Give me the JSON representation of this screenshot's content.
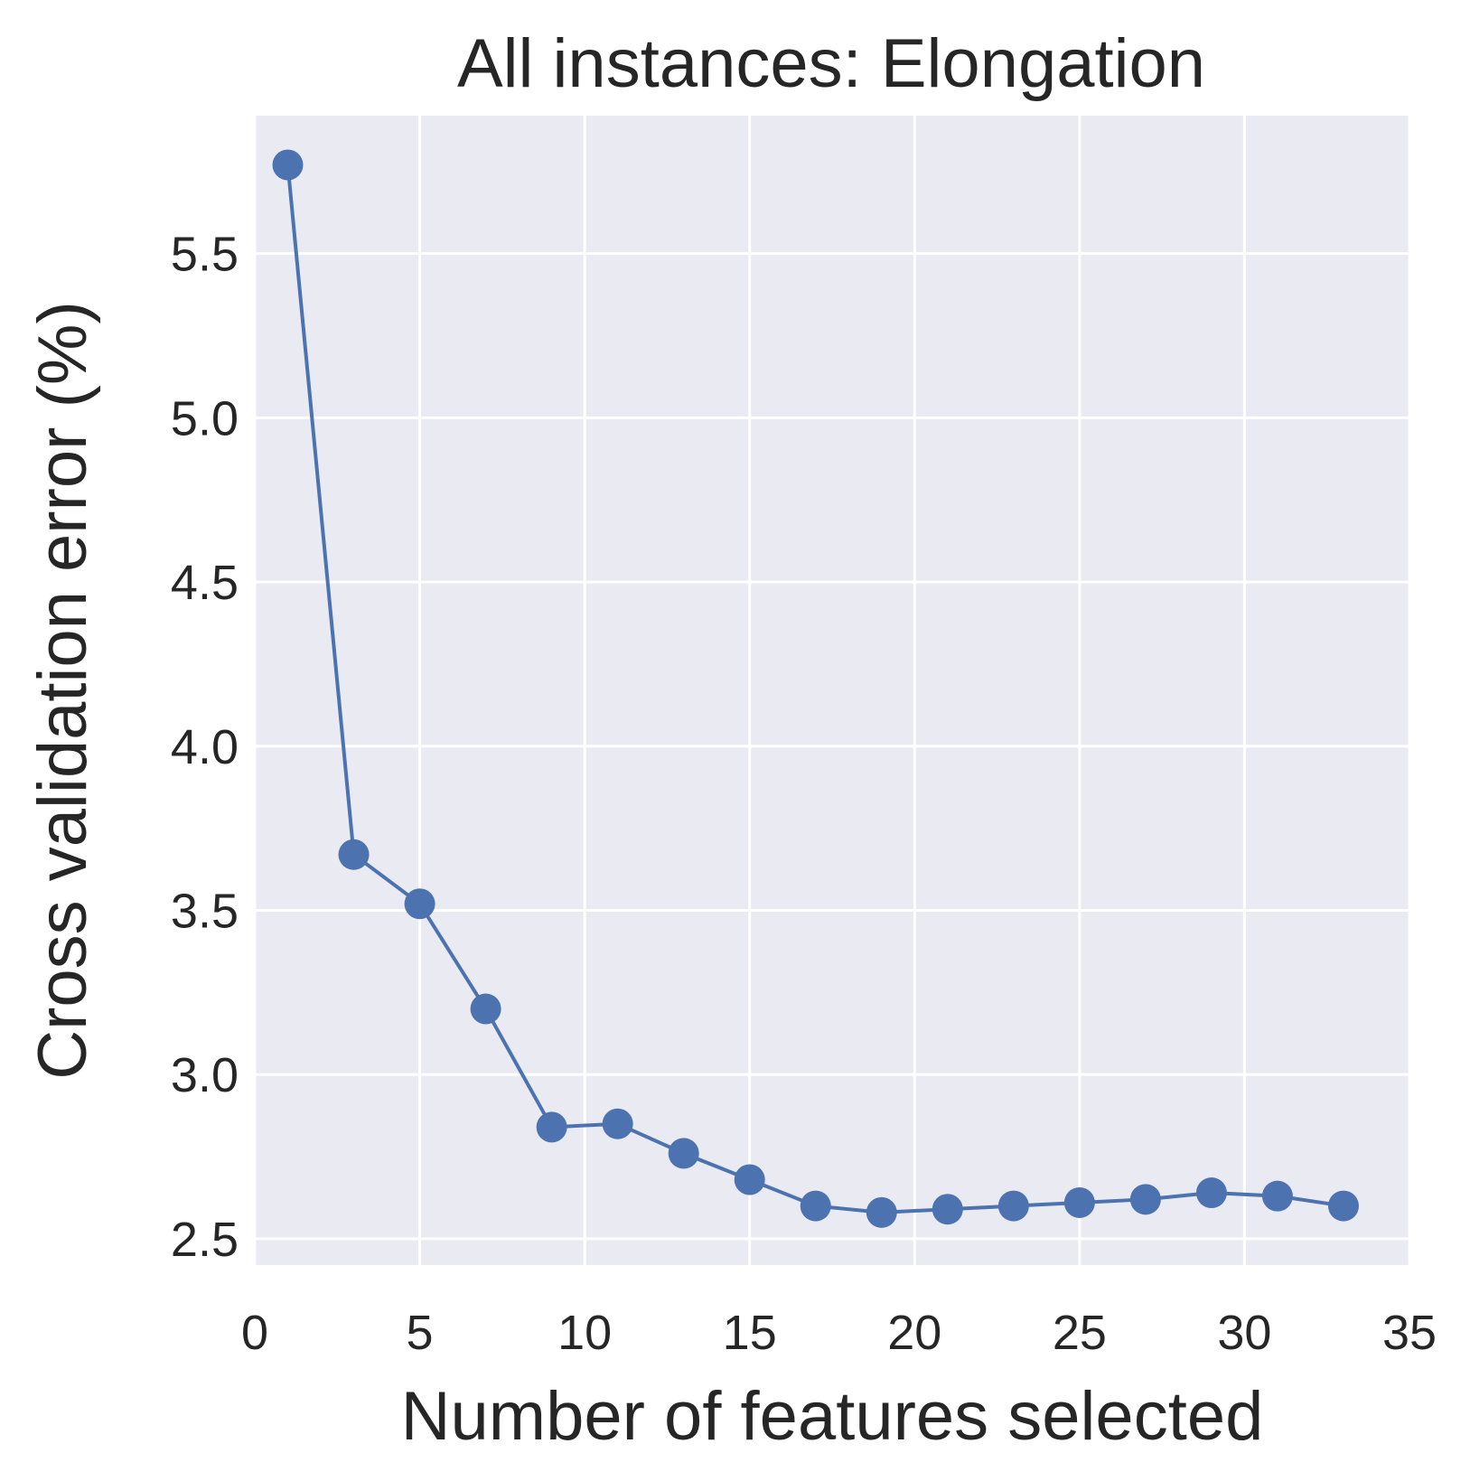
{
  "chart_data": {
    "type": "line",
    "title": "All instances: Elongation",
    "xlabel": "Number of features selected",
    "ylabel": "Cross validation error (%)",
    "xlim": [
      0,
      35
    ],
    "ylim": [
      2.42,
      5.92
    ],
    "xticks": [
      0,
      5,
      10,
      15,
      20,
      25,
      30,
      35
    ],
    "xtick_labels": [
      "0",
      "5",
      "10",
      "15",
      "20",
      "25",
      "30",
      "35"
    ],
    "yticks": [
      2.5,
      3.0,
      3.5,
      4.0,
      4.5,
      5.0,
      5.5
    ],
    "ytick_labels": [
      "2.5",
      "3.0",
      "3.5",
      "4.0",
      "4.5",
      "5.0",
      "5.5"
    ],
    "grid": true,
    "colors": {
      "series": "#4c72b0",
      "background": "#eaeaf2",
      "grid": "#ffffff",
      "text": "#262626"
    },
    "series": [
      {
        "marker": "circle",
        "x": [
          1,
          3,
          5,
          7,
          9,
          11,
          13,
          15,
          17,
          19,
          21,
          23,
          25,
          27,
          29,
          31,
          33
        ],
        "y": [
          5.77,
          3.67,
          3.52,
          3.2,
          2.84,
          2.85,
          2.76,
          2.68,
          2.6,
          2.58,
          2.59,
          2.6,
          2.61,
          2.62,
          2.64,
          2.63,
          2.6
        ]
      }
    ]
  }
}
